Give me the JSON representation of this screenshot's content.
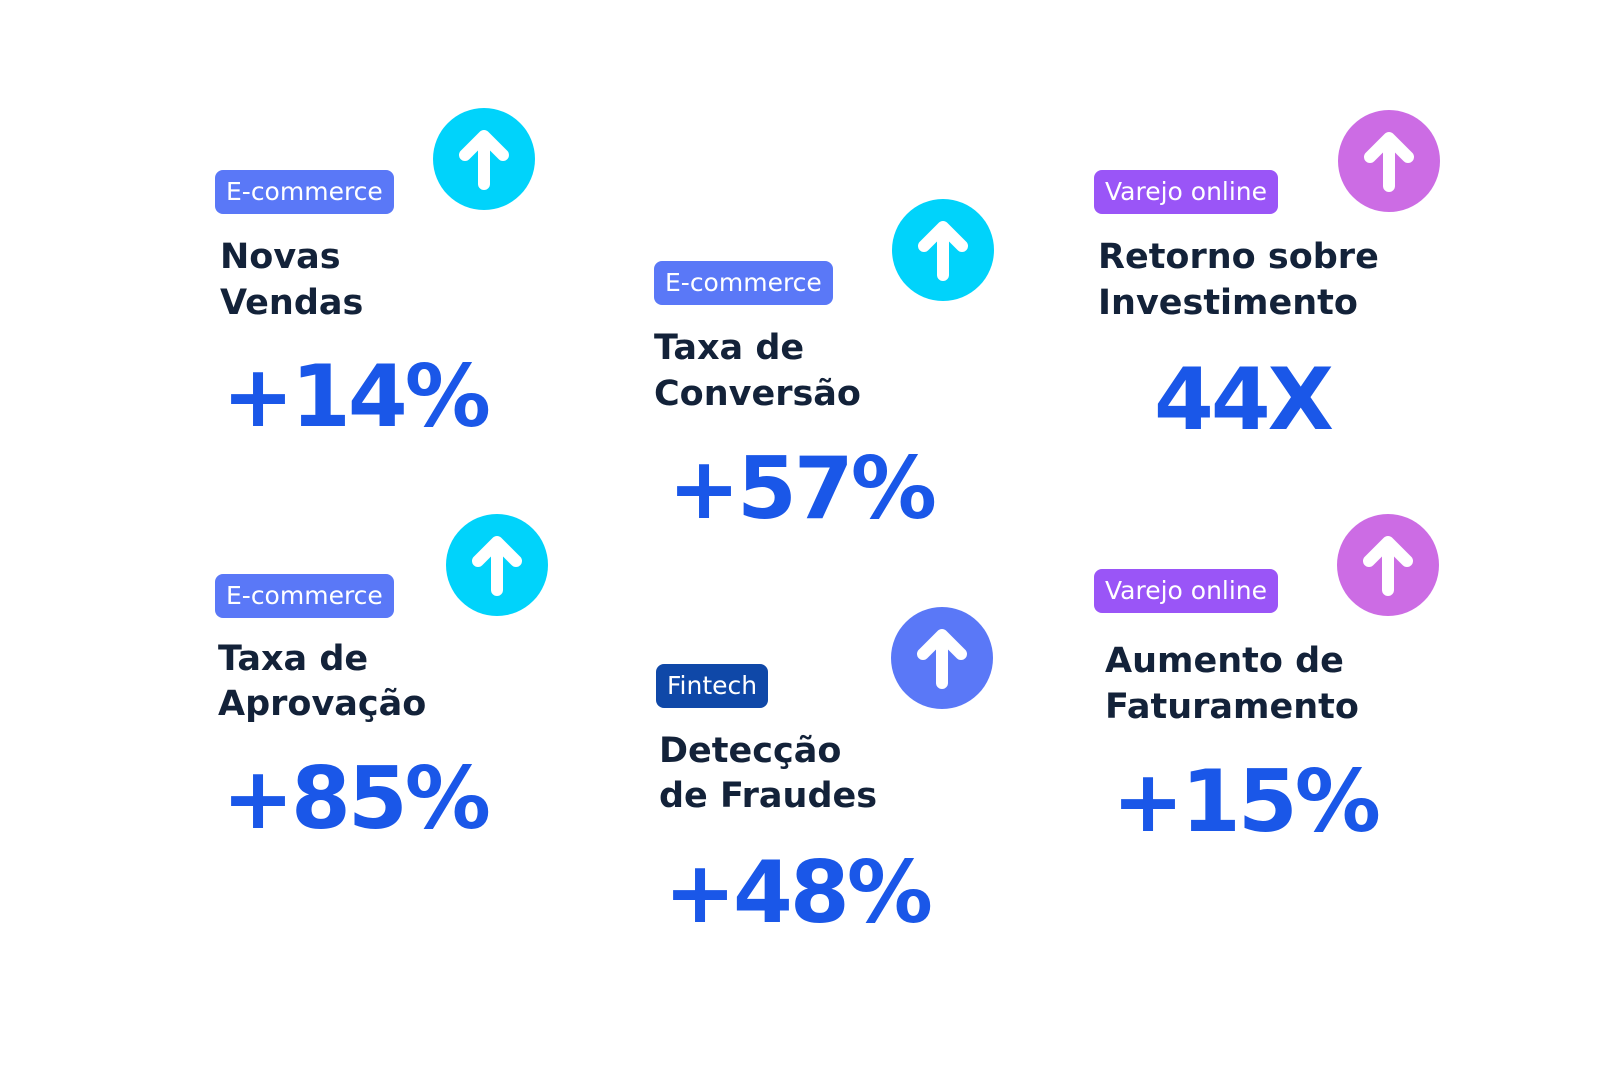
{
  "colors": {
    "title_text": "#132239",
    "value_text": "#1a57e8",
    "badge_ecommerce": "#5a78f7",
    "badge_varejo": "#9a55f7",
    "badge_fintech": "#0f48a8",
    "arrow_cyan": "#00d3fb",
    "arrow_pink": "#cc6ce4",
    "arrow_blue": "#5a78f7",
    "arrow_glyph": "#ffffff"
  },
  "cards": [
    {
      "badge": "E-commerce",
      "title_line1": "Novas",
      "title_line2": "Vendas",
      "value": "+14%",
      "icon": "arrow-up-icon",
      "badge_color": "#5a78f7",
      "icon_color": "#00d3fb"
    },
    {
      "badge": "E-commerce",
      "title_line1": "Taxa de",
      "title_line2": "Conversão",
      "value": "+57%",
      "icon": "arrow-up-icon",
      "badge_color": "#5a78f7",
      "icon_color": "#00d3fb"
    },
    {
      "badge": "Varejo online",
      "title_line1": "Retorno sobre",
      "title_line2": "Investimento",
      "value": "44X",
      "icon": "arrow-up-icon",
      "badge_color": "#9a55f7",
      "icon_color": "#cc6ce4"
    },
    {
      "badge": "E-commerce",
      "title_line1": "Taxa de",
      "title_line2": "Aprovação",
      "value": "+85%",
      "icon": "arrow-up-icon",
      "badge_color": "#5a78f7",
      "icon_color": "#00d3fb"
    },
    {
      "badge": "Fintech",
      "title_line1": "Detecção",
      "title_line2": "de Fraudes",
      "value": "+48%",
      "icon": "arrow-up-icon",
      "badge_color": "#0f48a8",
      "icon_color": "#5a78f7"
    },
    {
      "badge": "Varejo online",
      "title_line1": "Aumento de",
      "title_line2": "Faturamento",
      "value": "+15%",
      "icon": "arrow-up-icon",
      "badge_color": "#9a55f7",
      "icon_color": "#cc6ce4"
    }
  ]
}
